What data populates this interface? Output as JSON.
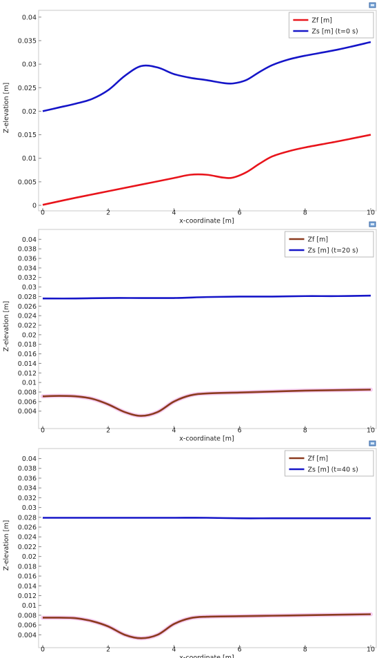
{
  "colors": {
    "zf_red": "#e8141b",
    "zf_brown": "#8b3a1e",
    "zs_blue": "#1515c8",
    "glow": "#f5c8ee",
    "frame": "#c8c8c8",
    "text": "#222222"
  },
  "chart_data": [
    {
      "type": "line",
      "xlabel": "x-coordinate [m]",
      "ylabel": "Z-elevation [m]",
      "xlim": [
        0,
        10
      ],
      "ylim": [
        0,
        0.041
      ],
      "xticks": [
        "0",
        "2",
        "4",
        "6",
        "8",
        "10"
      ],
      "yticks": [
        "0",
        "0.005",
        "0.01",
        "0.015",
        "0.02",
        "0.025",
        "0.03",
        "0.035",
        "0.04"
      ],
      "grid": false,
      "legend_position": "top-right",
      "series": [
        {
          "name": "Zf [m]",
          "color": "#e8141b",
          "x": [
            0,
            1,
            2,
            3,
            4,
            4.5,
            5,
            5.5,
            5.8,
            6.2,
            6.6,
            7,
            7.5,
            8,
            9,
            10
          ],
          "y": [
            0.0001,
            0.0016,
            0.003,
            0.0044,
            0.0058,
            0.0065,
            0.0065,
            0.0059,
            0.0059,
            0.007,
            0.0088,
            0.0104,
            0.0115,
            0.0123,
            0.0136,
            0.015
          ]
        },
        {
          "name": "Zs [m] (t=0 s)",
          "color": "#1515c8",
          "x": [
            0,
            0.5,
            1,
            1.5,
            2,
            2.5,
            3,
            3.5,
            4,
            4.5,
            5,
            5.5,
            5.8,
            6.2,
            6.6,
            7,
            7.5,
            8,
            9,
            10
          ],
          "y": [
            0.02,
            0.0208,
            0.0216,
            0.0226,
            0.0245,
            0.0275,
            0.0296,
            0.0293,
            0.0279,
            0.0271,
            0.0266,
            0.026,
            0.0259,
            0.0266,
            0.0283,
            0.0298,
            0.031,
            0.0318,
            0.0331,
            0.0347
          ]
        }
      ]
    },
    {
      "type": "line",
      "xlabel": "x-coordinate [m]",
      "ylabel": "Z-elevation [m]",
      "xlim": [
        0,
        10
      ],
      "ylim": [
        0.0015,
        0.0412
      ],
      "xticks": [
        "0",
        "2",
        "4",
        "6",
        "8",
        "10"
      ],
      "yticks": [
        "0.004",
        "0.006",
        "0.008",
        "0.01",
        "0.012",
        "0.014",
        "0.016",
        "0.018",
        "0.02",
        "0.022",
        "0.024",
        "0.026",
        "0.028",
        "0.03",
        "0.032",
        "0.034",
        "0.036",
        "0.038",
        "0.04"
      ],
      "grid": false,
      "legend_position": "top-right",
      "series": [
        {
          "name": "Zf [m]",
          "color": "#8b3a1e",
          "x": [
            0,
            0.5,
            1,
            1.5,
            2,
            2.5,
            3,
            3.5,
            4,
            4.5,
            5,
            6,
            7,
            8,
            9,
            10
          ],
          "y": [
            0.0071,
            0.0072,
            0.0071,
            0.0066,
            0.0054,
            0.0038,
            0.003,
            0.0038,
            0.006,
            0.0073,
            0.0077,
            0.0079,
            0.0081,
            0.0083,
            0.0084,
            0.0085
          ]
        },
        {
          "name": "Zs [m] (t=20 s)",
          "color": "#1515c8",
          "x": [
            0,
            1,
            2,
            3,
            4,
            5,
            6,
            7,
            8,
            9,
            10
          ],
          "y": [
            0.0276,
            0.0276,
            0.0277,
            0.0277,
            0.0277,
            0.0279,
            0.028,
            0.028,
            0.0281,
            0.0281,
            0.0282
          ]
        }
      ]
    },
    {
      "type": "line",
      "xlabel": "x-coordinate [m]",
      "ylabel": "Z-elevation [m]",
      "xlim": [
        0,
        10
      ],
      "ylim": [
        0.0025,
        0.0412
      ],
      "xticks": [
        "0",
        "2",
        "4",
        "6",
        "8",
        "10"
      ],
      "yticks": [
        "0.004",
        "0.006",
        "0.008",
        "0.01",
        "0.012",
        "0.014",
        "0.016",
        "0.018",
        "0.02",
        "0.022",
        "0.024",
        "0.026",
        "0.028",
        "0.03",
        "0.032",
        "0.034",
        "0.036",
        "0.038",
        "0.04"
      ],
      "grid": false,
      "legend_position": "top-right",
      "series": [
        {
          "name": "Zf [m]",
          "color": "#8b3a1e",
          "x": [
            0,
            0.5,
            1,
            1.5,
            2,
            2.5,
            3,
            3.5,
            4,
            4.5,
            5,
            6,
            7,
            8,
            9,
            10
          ],
          "y": [
            0.0075,
            0.0075,
            0.0074,
            0.0068,
            0.0057,
            0.004,
            0.0033,
            0.004,
            0.0062,
            0.0074,
            0.0077,
            0.0078,
            0.0079,
            0.008,
            0.0081,
            0.0082
          ]
        },
        {
          "name": "Zs [m] (t=40 s)",
          "color": "#1515c8",
          "x": [
            0,
            1,
            2,
            3,
            4,
            5,
            6,
            7,
            8,
            9,
            10
          ],
          "y": [
            0.0279,
            0.0279,
            0.0279,
            0.0279,
            0.0279,
            0.0279,
            0.0278,
            0.0278,
            0.0278,
            0.0278,
            0.0278
          ]
        }
      ]
    }
  ]
}
